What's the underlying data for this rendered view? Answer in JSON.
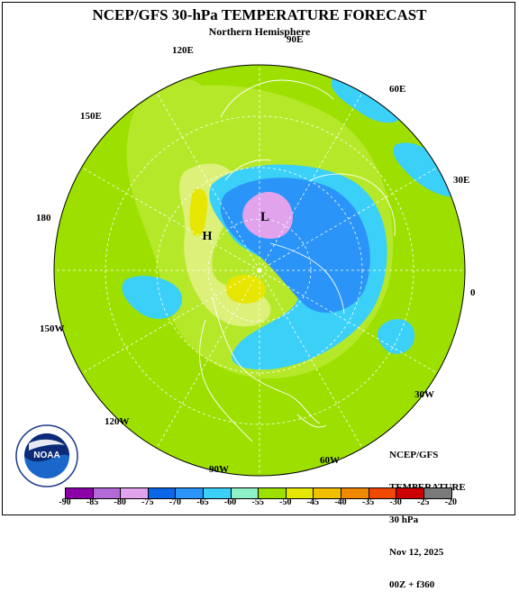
{
  "title": "NCEP/GFS 30-hPa TEMPERATURE FORECAST",
  "subtitle": "Northern Hemisphere",
  "longitudes": [
    "90E",
    "60E",
    "30E",
    "0",
    "30W",
    "60W",
    "90W",
    "120W",
    "150W",
    "180",
    "150E",
    "120E"
  ],
  "highs_lows": [
    "L",
    "H"
  ],
  "info": {
    "line1": "NCEP/GFS",
    "line2": "TEMPERATURE",
    "line3": "30 hPa",
    "line4": "Nov 12, 2025",
    "line5": "00Z + f360"
  },
  "logo": {
    "name": "NOAA",
    "ring_text": "NATIONAL OCEANIC AND ATMOSPHERIC ADMINISTRATION · U.S. DEPARTMENT OF COMMERCE"
  },
  "legend": {
    "ticks": [
      "-90",
      "-85",
      "-80",
      "-75",
      "-70",
      "-65",
      "-60",
      "-55",
      "-50",
      "-45",
      "-40",
      "-35",
      "-30",
      "-25",
      "-20"
    ],
    "colors": [
      "#8c00a8",
      "#b36ad8",
      "#e0a3ec",
      "#0a68e8",
      "#2a94f8",
      "#3bd0f8",
      "#8ef0c6",
      "#9de000",
      "#e6e600",
      "#f0bf00",
      "#f08800",
      "#f04800",
      "#cc0000",
      "#7a7a7a"
    ]
  },
  "field_colors": {
    "cold_core": "#e0a3ec",
    "blue": "#2a94f8",
    "cyan": "#3bd0f8",
    "green": "#9de000",
    "yellow": "#e6e600",
    "lightgreen": "#c8ec5a"
  }
}
